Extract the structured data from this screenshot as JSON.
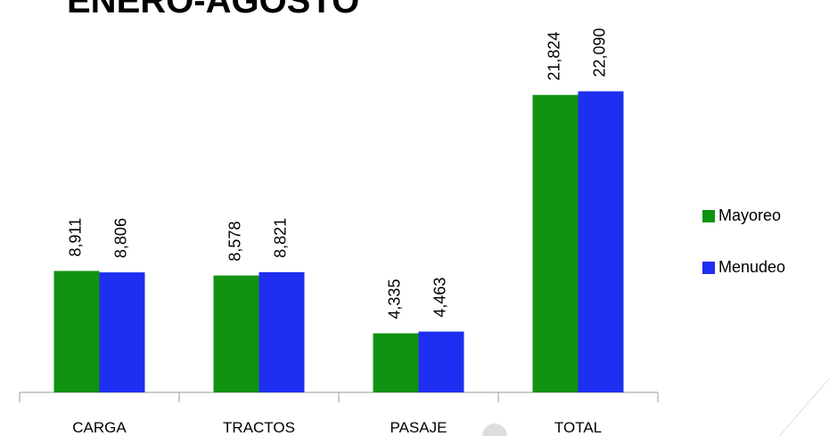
{
  "chart_data": {
    "type": "bar",
    "title": "ENERO-AGOSTO",
    "categories": [
      "CARGA",
      "TRACTOS",
      "PASAJE",
      "TOTAL"
    ],
    "series": [
      {
        "name": "Mayoreo",
        "color": "#119211",
        "values": [
          8911,
          8578,
          4335,
          21824
        ],
        "value_labels": [
          "8,911",
          "8,578",
          "4,335",
          "21,824"
        ]
      },
      {
        "name": "Menudeo",
        "color": "#1f2ff2",
        "values": [
          8806,
          8821,
          4463,
          22090
        ],
        "value_labels": [
          "8,806",
          "8,821",
          "4,463",
          "22,090"
        ]
      }
    ],
    "ylim": [
      0,
      25000
    ],
    "legend": "right"
  }
}
